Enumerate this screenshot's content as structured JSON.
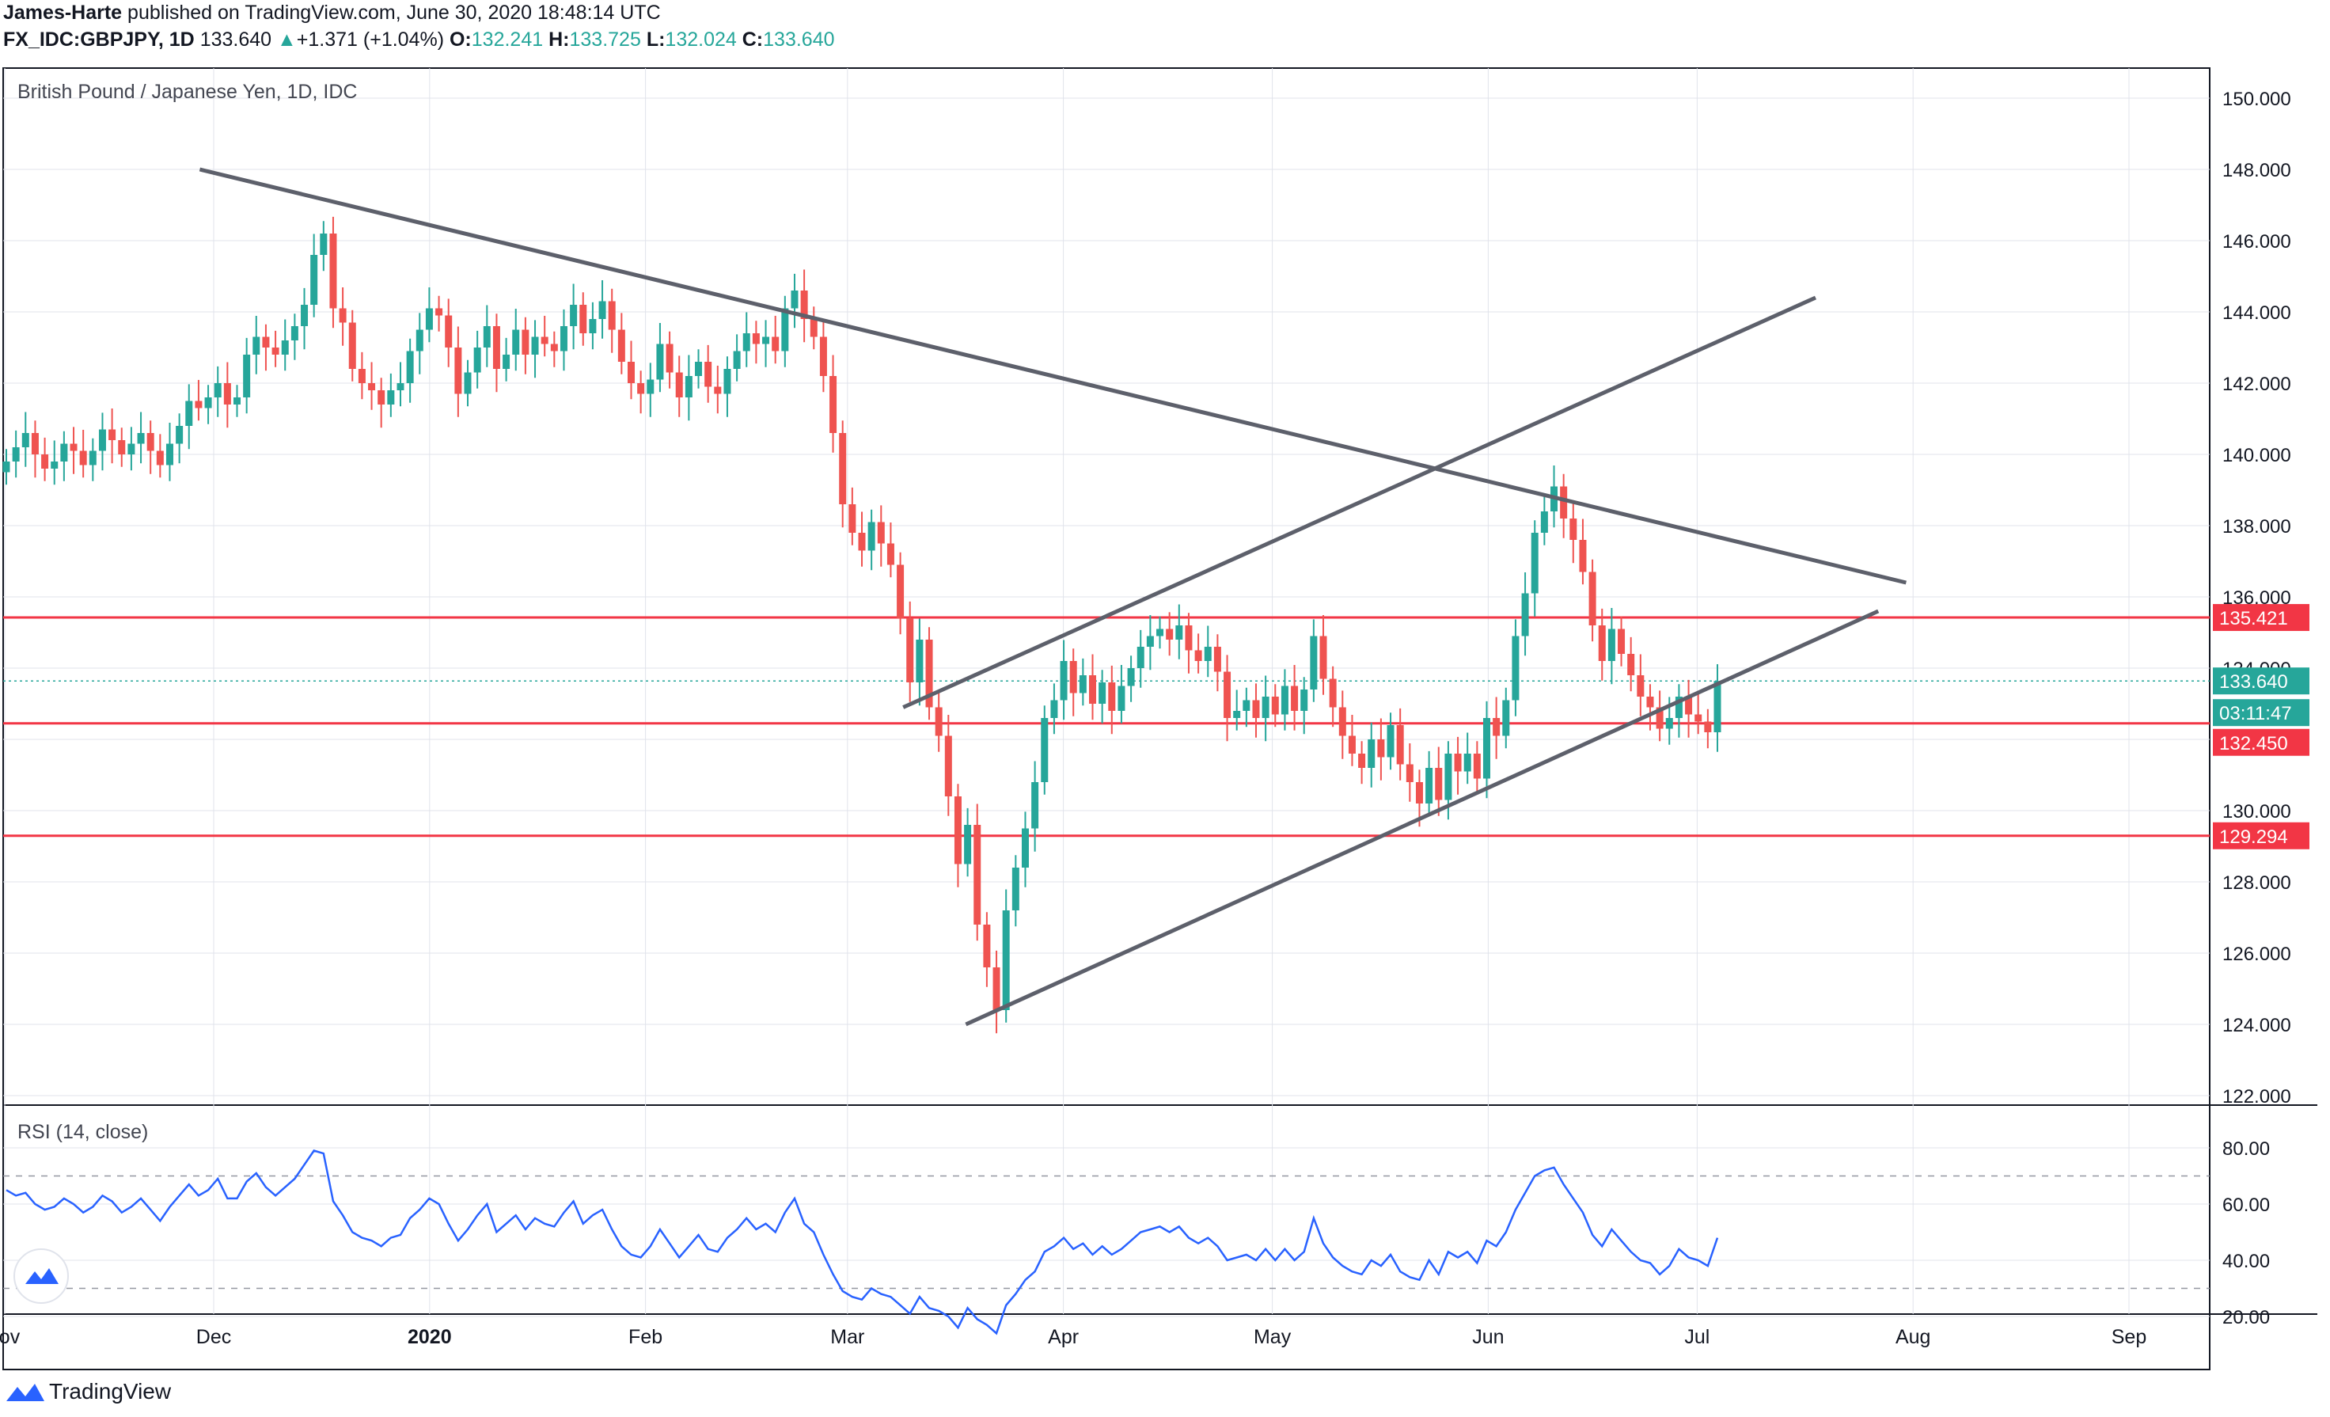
{
  "header": {
    "author": "James-Harte",
    "published": "published on TradingView.com, June 30, 2020 18:48:14 UTC",
    "symbol": "FX_IDC:GBPJPY, 1D",
    "price": "133.640",
    "change_arrow": "▲",
    "change": "+1.371 (+1.04%)",
    "o_label": "O:",
    "o": "132.241",
    "h_label": "H:",
    "h": "133.725",
    "l_label": "L:",
    "l": "132.024",
    "c_label": "C:",
    "c": "133.640"
  },
  "chart_data": {
    "type": "candlestick",
    "title": "British Pound / Japanese Yen, 1D, IDC",
    "x_ticks": [
      "ov",
      "Dec",
      "2020",
      "Feb",
      "Mar",
      "Apr",
      "May",
      "Jun",
      "Jul",
      "Aug",
      "Sep"
    ],
    "price_axis": {
      "ticks": [
        "150.000",
        "148.000",
        "146.000",
        "144.000",
        "142.000",
        "140.000",
        "138.000",
        "136.000",
        "134.000",
        "132.000",
        "130.000",
        "128.000",
        "126.000",
        "124.000",
        "122.000"
      ],
      "range": [
        121.7,
        150.9
      ]
    },
    "price_labels": [
      {
        "value": "135.421",
        "color": "#f23645"
      },
      {
        "value": "133.640",
        "color": "#26a69a"
      },
      {
        "value": "03:11:47",
        "color": "#26a69a"
      },
      {
        "value": "132.450",
        "color": "#f23645"
      },
      {
        "value": "129.294",
        "color": "#f23645"
      }
    ],
    "horizontal_levels": [
      135.421,
      132.45,
      129.294
    ],
    "last_price": 133.64,
    "closes": [
      139.8,
      140.2,
      140.6,
      140.0,
      139.6,
      139.8,
      140.3,
      140.1,
      139.7,
      140.1,
      140.7,
      140.4,
      140.0,
      140.3,
      140.6,
      140.1,
      139.7,
      140.3,
      140.8,
      141.5,
      141.3,
      141.6,
      142.0,
      141.4,
      141.6,
      142.8,
      143.3,
      143.0,
      142.8,
      143.2,
      143.6,
      144.2,
      145.6,
      146.2,
      144.1,
      143.7,
      142.4,
      142.0,
      141.8,
      141.4,
      141.8,
      142.0,
      142.9,
      143.5,
      144.1,
      143.9,
      143.0,
      141.7,
      142.3,
      143.0,
      143.6,
      142.4,
      142.8,
      143.5,
      142.8,
      143.3,
      143.1,
      142.9,
      143.6,
      144.2,
      143.4,
      143.8,
      144.3,
      143.5,
      142.6,
      142.0,
      141.7,
      142.1,
      143.1,
      142.3,
      141.6,
      142.2,
      142.6,
      141.9,
      141.7,
      142.4,
      142.9,
      143.4,
      143.1,
      143.3,
      142.9,
      144.1,
      144.6,
      143.8,
      143.3,
      142.2,
      140.6,
      138.6,
      137.8,
      137.3,
      138.1,
      137.5,
      136.9,
      135.4,
      133.6,
      134.8,
      132.9,
      132.1,
      130.4,
      128.5,
      129.6,
      126.8,
      125.6,
      124.4,
      127.2,
      128.4,
      129.5,
      130.8,
      132.6,
      133.1,
      134.2,
      133.3,
      133.8,
      133.0,
      133.6,
      132.8,
      133.5,
      134.0,
      134.6,
      134.9,
      135.1,
      134.8,
      135.2,
      134.5,
      134.2,
      134.6,
      133.9,
      132.6,
      132.8,
      133.1,
      132.6,
      133.2,
      132.7,
      133.5,
      132.8,
      133.4,
      134.9,
      133.7,
      132.9,
      132.1,
      131.6,
      131.2,
      132.0,
      131.5,
      132.4,
      131.3,
      130.8,
      130.2,
      131.2,
      130.3,
      131.6,
      131.1,
      131.6,
      130.9,
      132.6,
      132.1,
      133.1,
      134.9,
      136.1,
      137.8,
      138.4,
      139.1,
      138.2,
      137.6,
      136.7,
      135.2,
      134.2,
      135.1,
      134.4,
      133.8,
      133.2,
      132.9,
      132.3,
      132.6,
      133.2,
      132.7,
      132.5,
      132.2,
      133.64
    ],
    "trendlines": [
      {
        "from": [
          "2019-11-29",
          148.0
        ],
        "to": [
          "2020-07-31",
          136.4
        ]
      },
      {
        "from": [
          "2020-03-09",
          132.9
        ],
        "to": [
          "2020-07-18",
          144.4
        ]
      },
      {
        "from": [
          "2020-03-18",
          124.0
        ],
        "to": [
          "2020-07-27",
          135.6
        ]
      }
    ],
    "rsi": {
      "label": "RSI (14, close)",
      "ticks": [
        "80.00",
        "60.00",
        "40.00",
        "20.00"
      ],
      "range": [
        10,
        81
      ],
      "bands": [
        70,
        30
      ],
      "values": [
        65,
        63,
        64,
        60,
        58,
        59,
        62,
        60,
        57,
        59,
        63,
        61,
        57,
        59,
        62,
        58,
        54,
        59,
        63,
        67,
        63,
        65,
        69,
        62,
        62,
        68,
        71,
        66,
        63,
        66,
        69,
        74,
        79,
        78,
        61,
        56,
        50,
        48,
        47,
        45,
        48,
        49,
        55,
        58,
        62,
        60,
        53,
        47,
        51,
        56,
        60,
        50,
        53,
        56,
        51,
        55,
        53,
        52,
        57,
        61,
        53,
        56,
        58,
        51,
        45,
        42,
        41,
        45,
        51,
        46,
        41,
        45,
        49,
        44,
        43,
        48,
        51,
        55,
        51,
        53,
        50,
        57,
        62,
        53,
        50,
        42,
        35,
        29,
        27,
        26,
        30,
        28,
        27,
        24,
        21,
        27,
        23,
        22,
        20,
        16,
        23,
        19,
        17,
        14,
        24,
        28,
        33,
        36,
        43,
        45,
        48,
        44,
        46,
        42,
        45,
        42,
        44,
        47,
        50,
        51,
        52,
        50,
        52,
        48,
        46,
        48,
        45,
        40,
        41,
        42,
        40,
        44,
        40,
        44,
        40,
        43,
        55,
        46,
        41,
        38,
        36,
        35,
        40,
        38,
        42,
        36,
        34,
        33,
        40,
        35,
        43,
        41,
        43,
        39,
        47,
        45,
        50,
        58,
        64,
        70,
        72,
        73,
        67,
        62,
        57,
        49,
        45,
        51,
        47,
        43,
        40,
        39,
        35,
        38,
        44,
        41,
        40,
        38,
        48
      ]
    },
    "grid": true
  },
  "footer": {
    "brand": "TradingView"
  },
  "colors": {
    "up": "#26a69a",
    "down": "#ef5350",
    "level": "#f23645",
    "trendline": "#5d606b",
    "rsi": "#2962ff",
    "grid": "#e0e3eb"
  }
}
